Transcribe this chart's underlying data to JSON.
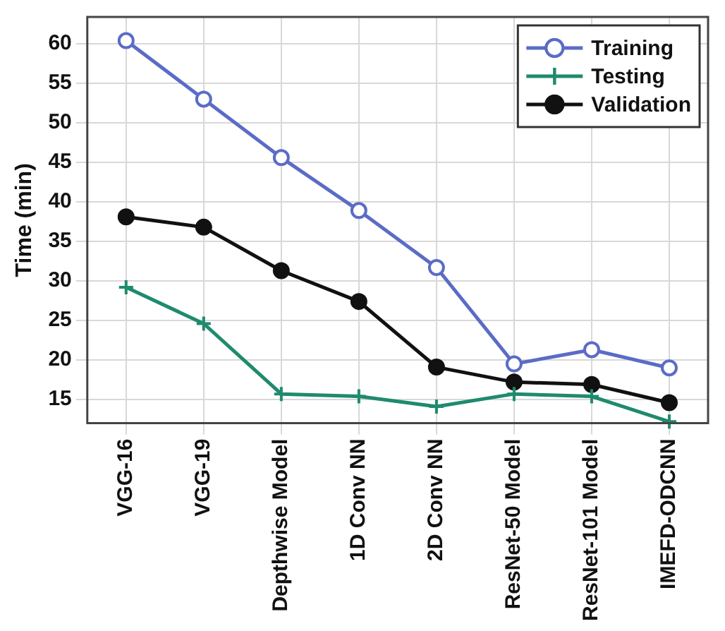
{
  "chart_data": {
    "type": "line",
    "ylabel": "Time (min)",
    "categories": [
      "VGG-16",
      "VGG-19",
      "Depthwise Model",
      "1D Conv NN",
      "2D Conv NN",
      "ResNet-50 Model",
      "ResNet-101 Model",
      "IMEFD-ODCNN"
    ],
    "series": [
      {
        "name": "Training",
        "color": "#5b6cc6",
        "marker": "circle",
        "values": [
          60.4,
          53.0,
          45.6,
          38.9,
          31.7,
          19.5,
          21.3,
          19.0
        ]
      },
      {
        "name": "Testing",
        "color": "#1f8a6e",
        "marker": "cross",
        "values": [
          29.2,
          24.6,
          15.7,
          15.4,
          14.1,
          15.7,
          15.4,
          12.2
        ]
      },
      {
        "name": "Validation",
        "color": "#111111",
        "marker": "circle",
        "values": [
          38.1,
          36.8,
          31.3,
          27.4,
          19.1,
          17.2,
          16.9,
          14.6
        ]
      }
    ],
    "ylim": [
      12,
      63.4
    ],
    "yticks": [
      15,
      20,
      25,
      30,
      35,
      40,
      45,
      50,
      55,
      60
    ],
    "grid": true,
    "legend": "top right"
  }
}
